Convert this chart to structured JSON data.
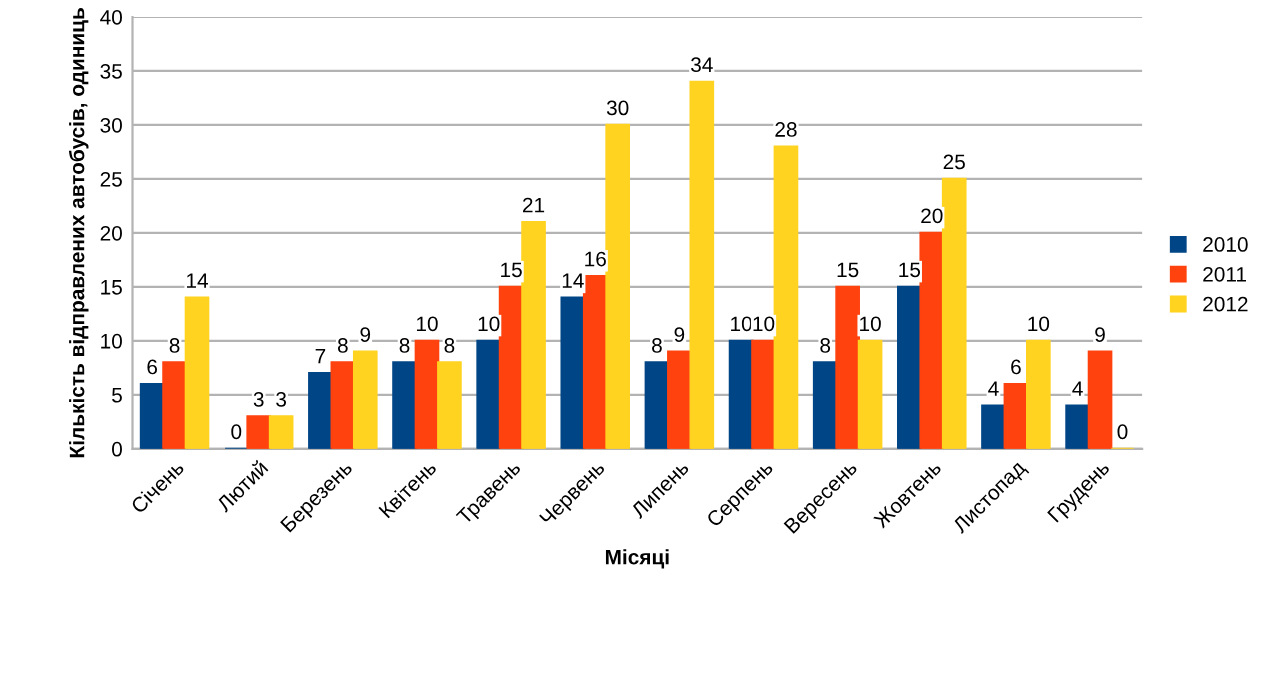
{
  "chart_data": {
    "type": "bar",
    "xlabel": "Місяці",
    "ylabel": "Кількість відправлених автобусів, одиниць",
    "categories": [
      "Січень",
      "Лютий",
      "Березень",
      "Квітень",
      "Травень",
      "Червень",
      "Липень",
      "Серпень",
      "Вересень",
      "Жовтень",
      "Листопад",
      "Грудень"
    ],
    "series": [
      {
        "name": "2010",
        "color": "#004586",
        "values": [
          6,
          0,
          7,
          8,
          10,
          14,
          8,
          10,
          8,
          15,
          4,
          4
        ]
      },
      {
        "name": "2011",
        "color": "#ff420e",
        "values": [
          8,
          3,
          8,
          10,
          15,
          16,
          9,
          10,
          15,
          20,
          6,
          9
        ]
      },
      {
        "name": "2012",
        "color": "#ffd320",
        "values": [
          14,
          3,
          9,
          8,
          21,
          30,
          34,
          28,
          10,
          25,
          10,
          0
        ]
      }
    ],
    "ylim": [
      0,
      40
    ],
    "yticks": [
      0,
      5,
      10,
      15,
      20,
      25,
      30,
      35,
      40
    ],
    "grid": "y",
    "legend": "right",
    "data_labels": true
  }
}
